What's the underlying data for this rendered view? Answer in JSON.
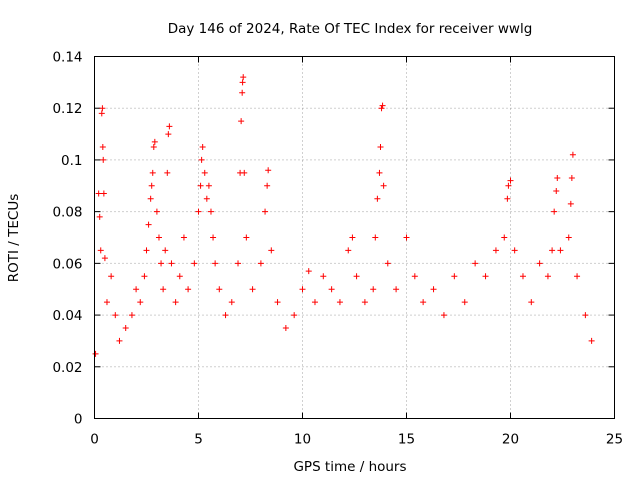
{
  "chart_data": {
    "type": "scatter",
    "title": "Day 146 of 2024, Rate Of TEC Index for receiver wwlg",
    "xlabel": "GPS time / hours",
    "ylabel": "ROTI / TECUs",
    "xlim": [
      0,
      25
    ],
    "ylim": [
      0,
      0.14
    ],
    "x_ticks": [
      "0",
      "5",
      "10",
      "15",
      "20",
      "25"
    ],
    "y_ticks": [
      "0",
      "0.02",
      "0.04",
      "0.06",
      "0.08",
      "0.1",
      "0.12",
      "0.14"
    ],
    "grid": true,
    "marker": "+",
    "color": "#ff0000",
    "series": [
      {
        "name": "ROTI",
        "points": [
          [
            0.05,
            0.025
          ],
          [
            0.2,
            0.087
          ],
          [
            0.25,
            0.078
          ],
          [
            0.3,
            0.065
          ],
          [
            0.35,
            0.118
          ],
          [
            0.38,
            0.12
          ],
          [
            0.4,
            0.105
          ],
          [
            0.42,
            0.1
          ],
          [
            0.45,
            0.087
          ],
          [
            0.5,
            0.062
          ],
          [
            0.6,
            0.045
          ],
          [
            0.8,
            0.055
          ],
          [
            1.0,
            0.04
          ],
          [
            1.2,
            0.03
          ],
          [
            1.5,
            0.035
          ],
          [
            1.8,
            0.04
          ],
          [
            2.0,
            0.05
          ],
          [
            2.2,
            0.045
          ],
          [
            2.4,
            0.055
          ],
          [
            2.5,
            0.065
          ],
          [
            2.6,
            0.075
          ],
          [
            2.7,
            0.085
          ],
          [
            2.75,
            0.09
          ],
          [
            2.8,
            0.095
          ],
          [
            2.85,
            0.105
          ],
          [
            2.9,
            0.107
          ],
          [
            3.0,
            0.08
          ],
          [
            3.1,
            0.07
          ],
          [
            3.2,
            0.06
          ],
          [
            3.3,
            0.05
          ],
          [
            3.4,
            0.065
          ],
          [
            3.5,
            0.095
          ],
          [
            3.55,
            0.11
          ],
          [
            3.6,
            0.113
          ],
          [
            3.7,
            0.06
          ],
          [
            3.9,
            0.045
          ],
          [
            4.1,
            0.055
          ],
          [
            4.3,
            0.07
          ],
          [
            4.5,
            0.05
          ],
          [
            4.8,
            0.06
          ],
          [
            5.0,
            0.08
          ],
          [
            5.1,
            0.09
          ],
          [
            5.15,
            0.1
          ],
          [
            5.2,
            0.105
          ],
          [
            5.3,
            0.095
          ],
          [
            5.4,
            0.085
          ],
          [
            5.5,
            0.09
          ],
          [
            5.6,
            0.08
          ],
          [
            5.7,
            0.07
          ],
          [
            5.8,
            0.06
          ],
          [
            6.0,
            0.05
          ],
          [
            6.3,
            0.04
          ],
          [
            6.6,
            0.045
          ],
          [
            6.9,
            0.06
          ],
          [
            7.0,
            0.095
          ],
          [
            7.05,
            0.115
          ],
          [
            7.1,
            0.126
          ],
          [
            7.12,
            0.13
          ],
          [
            7.15,
            0.132
          ],
          [
            7.2,
            0.095
          ],
          [
            7.3,
            0.07
          ],
          [
            7.6,
            0.05
          ],
          [
            8.0,
            0.06
          ],
          [
            8.2,
            0.08
          ],
          [
            8.3,
            0.09
          ],
          [
            8.35,
            0.096
          ],
          [
            8.5,
            0.065
          ],
          [
            8.8,
            0.045
          ],
          [
            9.2,
            0.035
          ],
          [
            9.6,
            0.04
          ],
          [
            10.0,
            0.05
          ],
          [
            10.3,
            0.057
          ],
          [
            10.6,
            0.045
          ],
          [
            11.0,
            0.055
          ],
          [
            11.4,
            0.05
          ],
          [
            11.8,
            0.045
          ],
          [
            12.2,
            0.065
          ],
          [
            12.4,
            0.07
          ],
          [
            12.6,
            0.055
          ],
          [
            13.0,
            0.045
          ],
          [
            13.4,
            0.05
          ],
          [
            13.5,
            0.07
          ],
          [
            13.6,
            0.085
          ],
          [
            13.7,
            0.095
          ],
          [
            13.75,
            0.105
          ],
          [
            13.8,
            0.12
          ],
          [
            13.85,
            0.121
          ],
          [
            13.9,
            0.09
          ],
          [
            14.1,
            0.06
          ],
          [
            14.5,
            0.05
          ],
          [
            15.0,
            0.07
          ],
          [
            15.4,
            0.055
          ],
          [
            15.8,
            0.045
          ],
          [
            16.3,
            0.05
          ],
          [
            16.8,
            0.04
          ],
          [
            17.3,
            0.055
          ],
          [
            17.8,
            0.045
          ],
          [
            18.3,
            0.06
          ],
          [
            18.8,
            0.055
          ],
          [
            19.3,
            0.065
          ],
          [
            19.7,
            0.07
          ],
          [
            19.85,
            0.085
          ],
          [
            19.9,
            0.09
          ],
          [
            20.0,
            0.092
          ],
          [
            20.2,
            0.065
          ],
          [
            20.6,
            0.055
          ],
          [
            21.0,
            0.045
          ],
          [
            21.4,
            0.06
          ],
          [
            21.8,
            0.055
          ],
          [
            22.0,
            0.065
          ],
          [
            22.1,
            0.08
          ],
          [
            22.2,
            0.088
          ],
          [
            22.25,
            0.093
          ],
          [
            22.4,
            0.065
          ],
          [
            22.8,
            0.07
          ],
          [
            22.9,
            0.083
          ],
          [
            22.95,
            0.093
          ],
          [
            23.0,
            0.102
          ],
          [
            23.2,
            0.055
          ],
          [
            23.6,
            0.04
          ],
          [
            23.9,
            0.03
          ]
        ]
      }
    ]
  }
}
